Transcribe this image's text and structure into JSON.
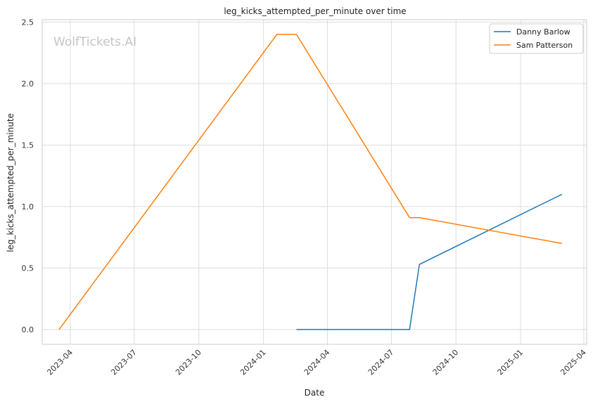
{
  "chart_data": {
    "type": "line",
    "title": "leg_kicks_attempted_per_minute over time",
    "xlabel": "Date",
    "ylabel": "leg_kicks_attempted_per_minute",
    "watermark": "WolfTickets.AI",
    "x_ticks": [
      "2023-04",
      "2023-07",
      "2023-10",
      "2024-01",
      "2024-04",
      "2024-07",
      "2024-10",
      "2025-01",
      "2025-04"
    ],
    "y_ticks": [
      "0.0",
      "0.5",
      "1.0",
      "1.5",
      "2.0",
      "2.5"
    ],
    "xlim": [
      "2023-02-20",
      "2025-04-05"
    ],
    "ylim": [
      -0.12,
      2.52
    ],
    "grid": true,
    "legend_position": "top-right",
    "series": [
      {
        "name": "Danny Barlow",
        "color": "#1f77b4",
        "points": [
          {
            "x": "2024-02-17",
            "y": 0.0
          },
          {
            "x": "2024-07-27",
            "y": 0.0
          },
          {
            "x": "2024-08-10",
            "y": 0.53
          },
          {
            "x": "2025-03-01",
            "y": 1.1
          }
        ]
      },
      {
        "name": "Sam Patterson",
        "color": "#ff7f0e",
        "points": [
          {
            "x": "2023-03-16",
            "y": 0.0
          },
          {
            "x": "2024-01-20",
            "y": 2.4
          },
          {
            "x": "2024-02-17",
            "y": 2.4
          },
          {
            "x": "2024-07-27",
            "y": 0.91
          },
          {
            "x": "2024-08-10",
            "y": 0.91
          },
          {
            "x": "2025-03-01",
            "y": 0.7
          }
        ]
      }
    ]
  }
}
